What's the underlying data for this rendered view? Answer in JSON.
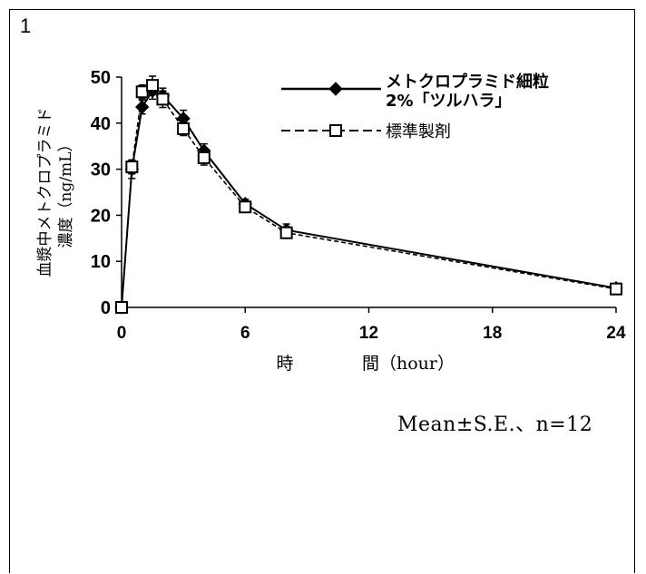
{
  "panel_number": "1",
  "stats_note": "Mean±S.E.、n=12",
  "colors": {
    "line": "#000000",
    "axis": "#000000",
    "ylabel_text": "#000000"
  },
  "chart_data": {
    "type": "line",
    "title": "",
    "xlabel_parts": [
      "時",
      "間（hour）"
    ],
    "ylabel_lines": [
      "血漿中メトクロプラミド",
      "濃度（ng/mL）"
    ],
    "xlim": [
      0,
      24
    ],
    "ylim": [
      0,
      50
    ],
    "xticks": [
      0,
      6,
      12,
      18,
      24
    ],
    "yticks": [
      0,
      10,
      20,
      30,
      40,
      50
    ],
    "grid": false,
    "legend_position": "top-right",
    "series": [
      {
        "name": "メトクロプラミド細粒\n2%「ツルハラ」",
        "name_lines": [
          "メトクロプラミド細粒",
          "2%「ツルハラ」"
        ],
        "marker": "diamond-filled",
        "line_style": "solid",
        "x": [
          0,
          0.5,
          1,
          1.5,
          2,
          3,
          4,
          6,
          8,
          24
        ],
        "y": [
          0,
          30,
          43.5,
          47,
          46,
          41,
          34,
          22.5,
          16.8,
          4.2
        ],
        "err": [
          0,
          2,
          1.5,
          1.8,
          1.6,
          1.8,
          1.5,
          1,
          1.3,
          0.5
        ]
      },
      {
        "name": "標準製剤",
        "name_lines": [
          "標準製剤"
        ],
        "marker": "square-open",
        "line_style": "dashed",
        "x": [
          0,
          0.5,
          1,
          1.5,
          2,
          3,
          4,
          6,
          8,
          24
        ],
        "y": [
          0,
          30.5,
          46.8,
          48.2,
          45.2,
          38.8,
          32.5,
          21.8,
          16.2,
          4
        ],
        "err": [
          0,
          1.5,
          1.5,
          2,
          1.8,
          1.5,
          1.6,
          1,
          1.2,
          0.5
        ]
      }
    ]
  }
}
